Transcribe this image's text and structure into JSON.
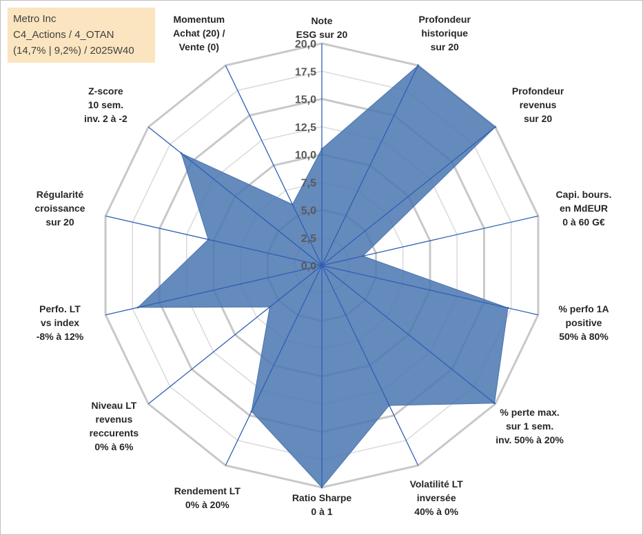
{
  "info": {
    "line1": "Metro Inc",
    "line2": "C4_Actions / 4_OTAN",
    "line3": "(14,7% | 9,2%) / 2025W40"
  },
  "colors": {
    "fill": "#4a76b0",
    "axis": "#2f5fb3",
    "grid_outer": "#c8c8c8",
    "grid_inner": "#d9d9d9"
  },
  "chart_data": {
    "type": "radar",
    "title": "",
    "rmin": 0,
    "rmax": 20,
    "tick_labels": [
      "0,0",
      "2,5",
      "5,0",
      "7,5",
      "10,0",
      "12,5",
      "15,0",
      "17,5",
      "20,0"
    ],
    "categories": [
      [
        "Note",
        "ESG sur 20"
      ],
      [
        "Profondeur",
        "historique",
        "sur 20"
      ],
      [
        "Profondeur",
        "revenus",
        "sur 20"
      ],
      [
        "Capi. bours.",
        "en MdEUR",
        "0 à 60 G€"
      ],
      [
        "% perfo 1A",
        "positive",
        "50% à 80%"
      ],
      [
        "% perte max.",
        "sur 1 sem.",
        "inv. 50% à 20%"
      ],
      [
        "Volatilité LT",
        "inversée",
        "40% à 0%"
      ],
      [
        "Ratio Sharpe",
        "0 à 1"
      ],
      [
        "Rendement LT",
        "0% à 20%"
      ],
      [
        "Niveau LT",
        "revenus",
        "reccurents",
        "0% à 6%"
      ],
      [
        "Perfo. LT",
        "vs index",
        "-8% à 12%"
      ],
      [
        "Régularité",
        "croissance",
        "sur 20"
      ],
      [
        "Z-score",
        "10 sem.",
        "inv. 2 à -2"
      ],
      [
        "Momentum",
        "Achat (20) /",
        "Vente (0)"
      ]
    ],
    "series": [
      {
        "name": "Metro Inc",
        "values": [
          10.5,
          20,
          20,
          3.8,
          17.2,
          19.9,
          14.0,
          20,
          14.6,
          6.0,
          17.0,
          10.5,
          16.2,
          6.1
        ]
      }
    ]
  }
}
